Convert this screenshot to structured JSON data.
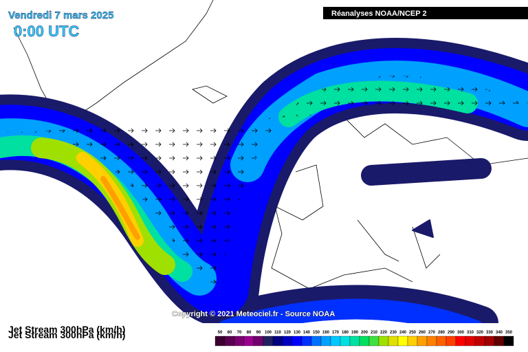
{
  "header": {
    "date": "Vendredi 7 mars 2025",
    "time": "0:00 UTC"
  },
  "source_label": "Réanalyses NOAA/NCEP 2",
  "copyright": "Copyright © 2021 Meteociel.fr - Source NOAA",
  "legend": {
    "title": "Jet Stream 300hPa (km/h)",
    "labels": [
      50,
      60,
      70,
      80,
      90,
      100,
      110,
      120,
      130,
      140,
      150,
      160,
      170,
      180,
      190,
      200,
      210,
      220,
      230,
      240,
      250,
      260,
      270,
      280,
      290,
      300,
      310,
      320,
      330,
      340,
      350
    ],
    "colors": [
      "#3a0030",
      "#5a0050",
      "#7a0070",
      "#9a0090",
      "#70006a",
      "#202060",
      "#000080",
      "#0000c0",
      "#0000ff",
      "#0030ff",
      "#0070ff",
      "#00a0ff",
      "#00c8ff",
      "#00e0e0",
      "#00e0a0",
      "#00e060",
      "#40e040",
      "#a0e000",
      "#e0e000",
      "#ffff00",
      "#ffd000",
      "#ffa000",
      "#ff8000",
      "#ff6000",
      "#ff4000",
      "#ff0000",
      "#e00000",
      "#c00000",
      "#a00000",
      "#600000",
      "#000000"
    ]
  }
}
